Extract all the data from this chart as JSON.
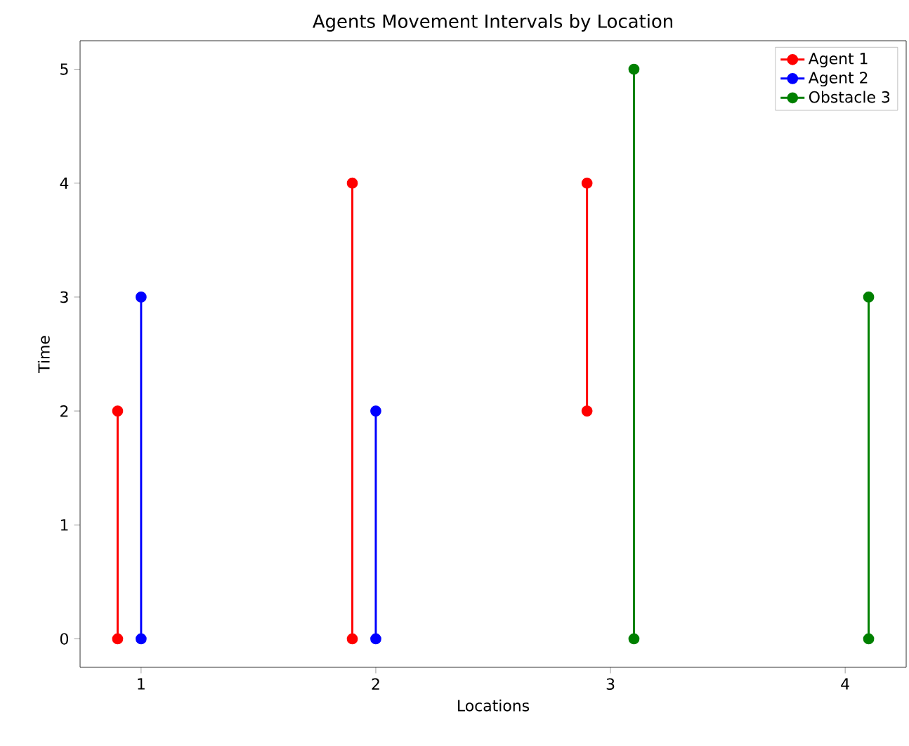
{
  "chart_data": {
    "type": "line",
    "title": "Agents Movement Intervals by Location",
    "xlabel": "Locations",
    "ylabel": "Time",
    "series": [
      {
        "name": "Agent 1",
        "color": "#ff0000",
        "x": [
          0.9,
          0.9
        ],
        "values": [
          0,
          2
        ]
      },
      {
        "color": "#ff0000",
        "x": [
          1.9,
          1.9
        ],
        "values": [
          0,
          4
        ]
      },
      {
        "color": "#ff0000",
        "x": [
          2.9,
          2.9
        ],
        "values": [
          2,
          4
        ]
      },
      {
        "name": "Agent 2",
        "color": "#0000ff",
        "x": [
          1.0,
          1.0
        ],
        "values": [
          0,
          3
        ]
      },
      {
        "color": "#0000ff",
        "x": [
          2.0,
          2.0
        ],
        "values": [
          0,
          2
        ]
      },
      {
        "name": "Obstacle 3",
        "color": "#008000",
        "x": [
          3.1,
          3.1
        ],
        "values": [
          0,
          5
        ]
      },
      {
        "color": "#008000",
        "x": [
          4.1,
          4.1
        ],
        "values": [
          0,
          3
        ]
      }
    ],
    "xlim": [
      0.74,
      4.26
    ],
    "ylim": [
      -0.25,
      5.25
    ],
    "xticks": [
      1,
      2,
      3,
      4
    ],
    "yticks": [
      0,
      1,
      2,
      3,
      4,
      5
    ],
    "marker": "circle",
    "line_style": "solid",
    "legend": "top right"
  }
}
